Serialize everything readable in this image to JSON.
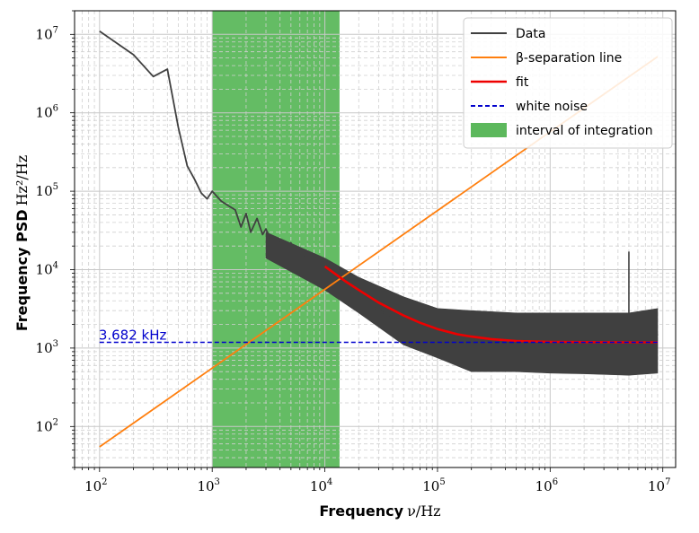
{
  "chart_data": {
    "type": "line",
    "title": "",
    "xlabel": "Frequency ν/Hz",
    "ylabel": "Frequency PSD Hz²/Hz",
    "x_scale": "log",
    "y_scale": "log",
    "xlim": [
      60,
      13000000
    ],
    "ylim": [
      30,
      20000000
    ],
    "x_ticks": [
      {
        "base": "10",
        "exp": "2",
        "value": 100
      },
      {
        "base": "10",
        "exp": "3",
        "value": 1000
      },
      {
        "base": "10",
        "exp": "4",
        "value": 10000
      },
      {
        "base": "10",
        "exp": "5",
        "value": 100000
      },
      {
        "base": "10",
        "exp": "6",
        "value": 1000000
      },
      {
        "base": "10",
        "exp": "7",
        "value": 10000000
      }
    ],
    "y_ticks": [
      {
        "base": "10",
        "exp": "2",
        "value": 100
      },
      {
        "base": "10",
        "exp": "3",
        "value": 1000
      },
      {
        "base": "10",
        "exp": "4",
        "value": 10000
      },
      {
        "base": "10",
        "exp": "5",
        "value": 100000
      },
      {
        "base": "10",
        "exp": "6",
        "value": 1000000
      },
      {
        "base": "10",
        "exp": "7",
        "value": 10000000
      }
    ],
    "grid": true,
    "legend_position": "top-right",
    "series": [
      {
        "name": "Data",
        "color": "#404040",
        "style": "solid",
        "x": [
          100,
          200,
          300,
          400,
          500,
          600,
          700,
          800,
          900,
          1000,
          1200,
          1400,
          1600,
          1800,
          2000,
          2200,
          2500,
          2800,
          3000,
          3500,
          4000,
          4500,
          5000,
          5500,
          6000,
          7000,
          8000,
          9000,
          10000,
          12000,
          15000,
          20000,
          30000,
          50000,
          70000,
          100000,
          200000,
          500000,
          1000000,
          2000000,
          4000000,
          5000000,
          6000000,
          8000000,
          9000000
        ],
        "y": [
          11000000,
          5500000,
          2900000,
          3600000,
          650000,
          210000,
          140000,
          95000,
          80000,
          100000,
          75000,
          65000,
          58000,
          35000,
          52000,
          30000,
          45000,
          28000,
          33000,
          20000,
          24000,
          17000,
          22000,
          15000,
          16000,
          13000,
          11000,
          9500,
          9000,
          7500,
          6000,
          4500,
          3000,
          2200,
          1800,
          1500,
          1300,
          1250,
          1200,
          1200,
          1200,
          1250,
          1200,
          1200,
          1500
        ],
        "noise_band": {
          "x": [
            3000,
            10000,
            20000,
            50000,
            100000,
            200000,
            500000,
            1000000,
            2000000,
            5000000,
            9000000
          ],
          "upper": [
            30000,
            14000,
            8000,
            4500,
            3200,
            3000,
            2800,
            2800,
            2800,
            2800,
            3200
          ],
          "lower": [
            14000,
            5500,
            2800,
            1100,
            750,
            500,
            500,
            480,
            470,
            450,
            480
          ]
        },
        "spike": {
          "x": 5000000,
          "y": 17000
        }
      },
      {
        "name": "β-separation line",
        "color": "#ff7f0e",
        "style": "solid",
        "x": [
          100,
          9000000
        ],
        "y": [
          55,
          5200000
        ]
      },
      {
        "name": "fit",
        "color": "#ee0000",
        "style": "solid",
        "x": [
          10000,
          15000,
          20000,
          30000,
          50000,
          70000,
          100000,
          150000,
          200000,
          300000,
          500000,
          1000000,
          2000000,
          5000000,
          9000000
        ],
        "y": [
          11000,
          7200,
          5500,
          3800,
          2600,
          2100,
          1750,
          1500,
          1400,
          1300,
          1230,
          1200,
          1190,
          1185,
          1185
        ]
      },
      {
        "name": "white noise",
        "color": "#0000cc",
        "style": "dashed",
        "x": [
          100,
          9000000
        ],
        "y": [
          1185,
          1185
        ]
      }
    ],
    "shaded_regions": [
      {
        "name": "interval of integration",
        "color": "#5cb85c",
        "x_start": 1000,
        "x_end": 13500
      }
    ],
    "annotations": [
      {
        "text": "3.682 kHz",
        "x": 100,
        "y": 1185,
        "color": "#0000cc"
      }
    ]
  }
}
